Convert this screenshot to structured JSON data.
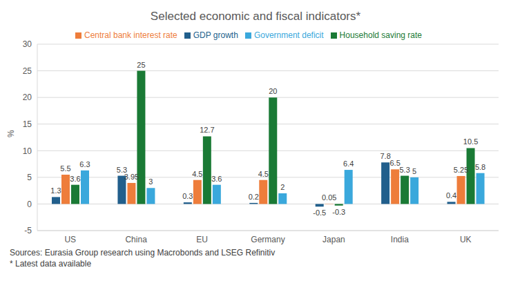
{
  "chart_data": {
    "type": "bar",
    "title": "Selected economic and fiscal indicators*",
    "y_label": "%",
    "categories": [
      "US",
      "China",
      "EU",
      "Germany",
      "Japan",
      "India",
      "UK"
    ],
    "series": [
      {
        "name": "GDP growth",
        "color": "#215f8c",
        "values": [
          1.3,
          5.3,
          0.3,
          0.2,
          -0.5,
          7.8,
          0.4
        ]
      },
      {
        "name": "Central bank interest rate",
        "color": "#ee7d3b",
        "values": [
          5.5,
          3.95,
          4.5,
          4.5,
          0.05,
          6.5,
          5.25
        ]
      },
      {
        "name": "Household saving rate",
        "color": "#1a7a35",
        "values": [
          3.6,
          25,
          12.7,
          20,
          -0.3,
          5.3,
          10.5
        ]
      },
      {
        "name": "Government deficit",
        "color": "#3aa8dc",
        "values": [
          6.3,
          3,
          3.6,
          2,
          6.4,
          5,
          5.8
        ]
      }
    ],
    "ylim": [
      -5,
      30
    ],
    "yticks": [
      -5,
      0,
      5,
      10,
      15,
      20,
      25,
      30
    ],
    "grid": true,
    "legend": "top",
    "data_labels": true,
    "annotations": [
      "Sources: Eurasia Group research using Macrobonds and LSEG Refinitiv",
      "* Latest data available"
    ]
  }
}
